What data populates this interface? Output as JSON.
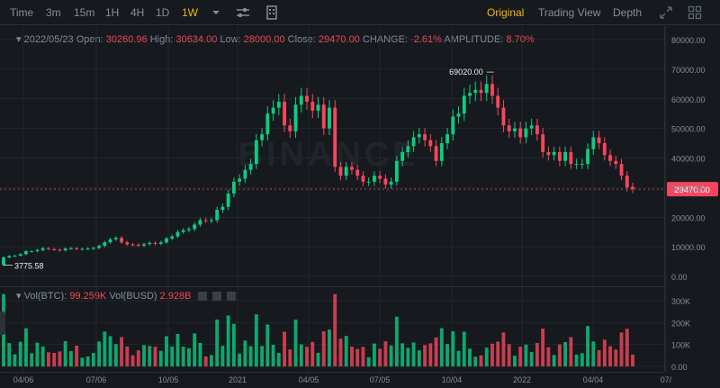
{
  "toolbar": {
    "intervals": [
      {
        "label": "Time",
        "active": false
      },
      {
        "label": "3m",
        "active": false
      },
      {
        "label": "15m",
        "active": false
      },
      {
        "label": "1H",
        "active": false
      },
      {
        "label": "4H",
        "active": false
      },
      {
        "label": "1D",
        "active": false
      },
      {
        "label": "1W",
        "active": true
      }
    ],
    "views": [
      {
        "label": "Original",
        "active": true
      },
      {
        "label": "Trading View",
        "active": false
      },
      {
        "label": "Depth",
        "active": false
      }
    ],
    "icons": [
      "chevron-down-icon",
      "indicator-settings-icon",
      "chart-layout-icon",
      "fullscreen-icon",
      "grid-icon"
    ]
  },
  "legend": {
    "date": "2022/05/23",
    "open_label": "Open:",
    "open": "30260.96",
    "high_label": "High:",
    "high": "30634.00",
    "low_label": "Low:",
    "low": "28000.00",
    "close_label": "Close:",
    "close": "29470.00",
    "change_label": "CHANGE:",
    "change": "-2.61%",
    "amplitude_label": "AMPLITUDE:",
    "amplitude": "8.70%"
  },
  "volume_legend": {
    "btc_label": "Vol(BTC):",
    "btc": "99.259K",
    "busd_label": "Vol(BUSD)",
    "busd": "2.928B"
  },
  "watermark": "BINANCE",
  "colors": {
    "up": "#0ecb81",
    "down": "#f6465d",
    "background": "#161a1e",
    "grid": "#2b3139",
    "accent": "#f0b90b"
  },
  "chart_data": [
    {
      "type": "candlestick",
      "price_axis": {
        "ticks": [
          "0.00",
          "10000.00",
          "20000.00",
          "30000.00",
          "40000.00",
          "50000.00",
          "60000.00",
          "70000.00",
          "80000.00"
        ],
        "ylim": [
          0,
          80000
        ]
      },
      "time_axis": {
        "ticks": [
          "04/06",
          "07/06",
          "10/05",
          "2021",
          "04/05",
          "07/05",
          "10/04",
          "2022",
          "04/04",
          "07/"
        ]
      },
      "current_price": "29470.00",
      "annotations": [
        {
          "label": "69020.00",
          "type": "max"
        },
        {
          "label": "3775.58",
          "type": "min"
        }
      ],
      "close_series": [
        6400,
        6900,
        7000,
        7500,
        8500,
        8500,
        8900,
        9500,
        9200,
        9000,
        8800,
        9400,
        9500,
        9200,
        9300,
        9400,
        9600,
        10300,
        11500,
        12500,
        13000,
        11500,
        10800,
        10700,
        10400,
        10900,
        11300,
        11000,
        11500,
        12800,
        13500,
        15000,
        15600,
        16000,
        17500,
        19000,
        18800,
        19000,
        22500,
        23500,
        28000,
        32000,
        33000,
        36000,
        38000,
        46000,
        48000,
        55000,
        57000,
        59000,
        51000,
        49000,
        58000,
        61000,
        59000,
        56000,
        58000,
        50000,
        57000,
        37000,
        34000,
        37000,
        36000,
        34000,
        32000,
        32000,
        34000,
        33000,
        31000,
        32000,
        39000,
        42000,
        44000,
        47000,
        48000,
        46000,
        44000,
        39000,
        45000,
        48000,
        54000,
        55000,
        61000,
        62000,
        63000,
        62000,
        65000,
        61000,
        57000,
        51000,
        49000,
        50000,
        47000,
        50000,
        51000,
        48000,
        42000,
        41000,
        42000,
        39000,
        42000,
        38000,
        38000,
        38000,
        43000,
        47000,
        45000,
        41000,
        39000,
        38000,
        34000,
        30000,
        29470
      ]
    },
    {
      "type": "bar",
      "title": "Volume",
      "axis_ticks": [
        "0.00",
        "100K",
        "200K",
        "300K"
      ],
      "ylim": [
        0,
        300000
      ]
    }
  ]
}
